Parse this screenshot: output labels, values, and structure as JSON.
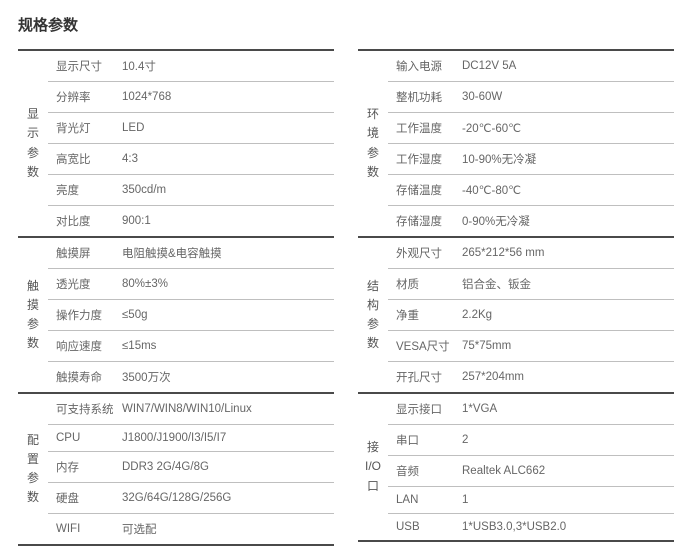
{
  "title": "规格参数",
  "colors": {
    "title_text": "#333333",
    "label_text": "#555555",
    "row_text": "#666666",
    "thick_border": "#4a4a4a",
    "thin_border": "#bfbfbf",
    "background": "#ffffff"
  },
  "typography": {
    "title_fontsize": 15,
    "title_weight": "bold",
    "label_fontsize": 12,
    "row_fontsize": 11.5
  },
  "layout": {
    "column_gap": 24,
    "section_label_width": 30,
    "row_label_width": 70
  },
  "left": [
    {
      "label": [
        "显",
        "示",
        "参",
        "数"
      ],
      "rows": [
        {
          "label": "显示尺寸",
          "value": "10.4寸"
        },
        {
          "label": "分辨率",
          "value": "1024*768"
        },
        {
          "label": "背光灯",
          "value": "LED"
        },
        {
          "label": "高宽比",
          "value": "4:3"
        },
        {
          "label": "亮度",
          "value": "350cd/m"
        },
        {
          "label": "对比度",
          "value": "900:1"
        }
      ]
    },
    {
      "label": [
        "触",
        "摸",
        "参",
        "数"
      ],
      "rows": [
        {
          "label": "触摸屏",
          "value": "电阻触摸&电容触摸"
        },
        {
          "label": "透光度",
          "value": "80%±3%"
        },
        {
          "label": "操作力度",
          "value": "≤50g"
        },
        {
          "label": "响应速度",
          "value": "≤15ms"
        },
        {
          "label": "触摸寿命",
          "value": "3500万次"
        }
      ]
    },
    {
      "label": [
        "配",
        "置",
        "参",
        "数"
      ],
      "rows": [
        {
          "label": "可支持系统",
          "value": "WIN7/WIN8/WIN10/Linux"
        },
        {
          "label": "CPU",
          "value": "J1800/J1900/I3/I5/I7"
        },
        {
          "label": "内存",
          "value": "DDR3 2G/4G/8G"
        },
        {
          "label": "硬盘",
          "value": "32G/64G/128G/256G"
        },
        {
          "label": "WIFI",
          "value": "可选配"
        }
      ]
    }
  ],
  "right": [
    {
      "label": [
        "环",
        "境",
        "参",
        "数"
      ],
      "rows": [
        {
          "label": "输入电源",
          "value": "DC12V 5A"
        },
        {
          "label": "整机功耗",
          "value": "30-60W"
        },
        {
          "label": "工作温度",
          "value": "-20℃-60℃"
        },
        {
          "label": "工作湿度",
          "value": "10-90%无冷凝"
        },
        {
          "label": "存储温度",
          "value": "-40℃-80℃"
        },
        {
          "label": "存储湿度",
          "value": "0-90%无冷凝"
        }
      ]
    },
    {
      "label": [
        "结",
        "构",
        "参",
        "数"
      ],
      "rows": [
        {
          "label": "外观尺寸",
          "value": "265*212*56 mm"
        },
        {
          "label": "材质",
          "value": "铝合金、钣金"
        },
        {
          "label": "净重",
          "value": "2.2Kg"
        },
        {
          "label": "VESA尺寸",
          "value": "75*75mm"
        },
        {
          "label": "开孔尺寸",
          "value": "257*204mm"
        }
      ]
    },
    {
      "label": [
        "接",
        "I/O",
        "口"
      ],
      "rows": [
        {
          "label": "显示接口",
          "value": "1*VGA"
        },
        {
          "label": "串口",
          "value": "2"
        },
        {
          "label": "音频",
          "value": "Realtek ALC662"
        },
        {
          "label": "LAN",
          "value": "1"
        },
        {
          "label": "USB",
          "value": "1*USB3.0,3*USB2.0"
        }
      ]
    }
  ]
}
